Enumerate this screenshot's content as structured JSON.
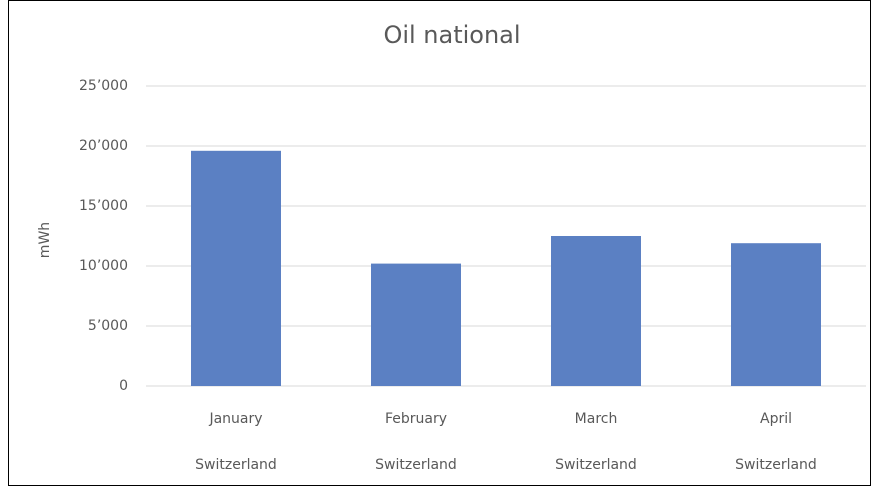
{
  "chart_data": {
    "type": "bar",
    "title": "Oil national",
    "y_label": "mWh",
    "categories": [
      "January",
      "February",
      "March",
      "April"
    ],
    "subcategories": [
      "Switzerland",
      "Switzerland",
      "Switzerland",
      "Switzerland"
    ],
    "values": [
      19600,
      10200,
      12500,
      11900
    ],
    "color": "#5b80c3",
    "ylim": [
      0,
      25000
    ],
    "yticks": [
      0,
      {
        "value": 5000,
        "label": "5’000"
      },
      {
        "value": 10000,
        "label": "10’000"
      },
      {
        "value": 15000,
        "label": "15’000"
      },
      {
        "value": 20000,
        "label": "20’000"
      },
      {
        "value": 25000,
        "label": "25’000"
      }
    ],
    "grid": true
  }
}
